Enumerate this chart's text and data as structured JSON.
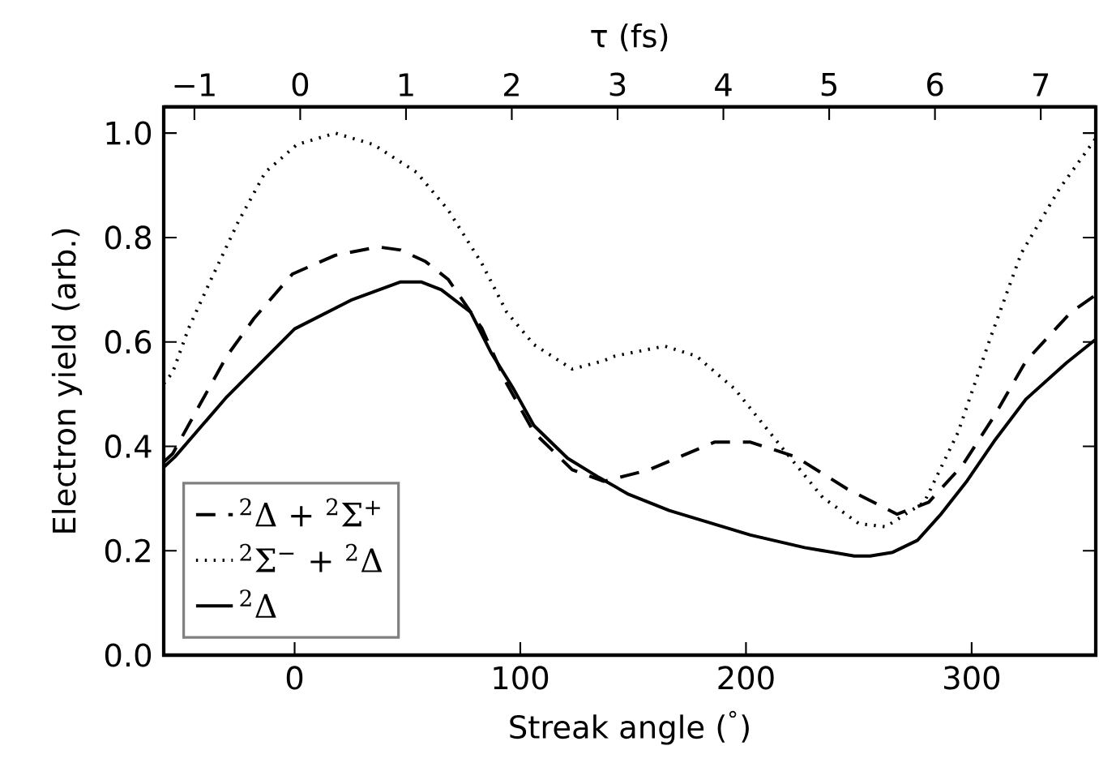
{
  "chart_data": {
    "type": "line",
    "xlabel": "Streak angle ($^{°}$)",
    "ylabel": "Electron yield (arb.)",
    "x2label": "τ (fs)",
    "xlim": [
      -58,
      355
    ],
    "ylim": [
      0,
      1.05
    ],
    "xticks": [
      0,
      100,
      200,
      300
    ],
    "yticks": [
      {
        "value": 0,
        "label": "0.0"
      },
      {
        "value": 0.2,
        "label": "0.2"
      },
      {
        "value": 0.4,
        "label": "0.4"
      },
      {
        "value": 0.6,
        "label": "0.6"
      },
      {
        "value": 0.8,
        "label": "0.8"
      },
      {
        "value": 1.0,
        "label": "1.0"
      }
    ],
    "x2lim": [
      -1.29,
      7.52
    ],
    "x2ticks": [
      {
        "value": -1,
        "label": "−1"
      },
      0,
      1,
      2,
      3,
      4,
      5,
      6,
      7
    ],
    "grid": false,
    "legend": "bottom left",
    "marker": "none",
    "series": [
      {
        "name": "$^{2}$Δ + $^{2}$Σ$^{+}$",
        "color": "#000000",
        "line_style": "dashed",
        "x": [
          -58,
          -54,
          -42,
          -30,
          -18,
          -1,
          18,
          37,
          47,
          58,
          68,
          83,
          94,
          106,
          123,
          137,
          148,
          157,
          186,
          202,
          222,
          245,
          267,
          281,
          296,
          310,
          324,
          344,
          355
        ],
        "values": [
          0.37,
          0.386,
          0.48,
          0.573,
          0.645,
          0.73,
          0.766,
          0.782,
          0.776,
          0.754,
          0.72,
          0.626,
          0.52,
          0.427,
          0.355,
          0.333,
          0.345,
          0.355,
          0.408,
          0.408,
          0.38,
          0.318,
          0.27,
          0.293,
          0.364,
          0.458,
          0.563,
          0.657,
          0.69
        ]
      },
      {
        "name": "$^{2}$Σ$^{−}$ + $^{2}$Δ",
        "color": "#000000",
        "line_style": "dotted",
        "x": [
          -58,
          -54,
          -47,
          -37,
          -25,
          -13,
          1,
          18,
          35,
          54,
          68,
          83,
          94,
          106,
          123,
          137,
          142,
          164,
          178,
          195,
          214,
          234,
          250,
          262,
          279,
          294,
          308,
          322,
          339,
          355
        ],
        "values": [
          0.52,
          0.542,
          0.626,
          0.72,
          0.83,
          0.925,
          0.978,
          1.0,
          0.978,
          0.925,
          0.853,
          0.75,
          0.657,
          0.595,
          0.548,
          0.564,
          0.573,
          0.592,
          0.573,
          0.51,
          0.408,
          0.302,
          0.252,
          0.246,
          0.293,
          0.427,
          0.604,
          0.77,
          0.894,
          0.99
        ]
      },
      {
        "name": "$^{2}$Δ",
        "color": "#000000",
        "line_style": "solid",
        "x": [
          -58,
          -53,
          -30,
          0,
          25,
          47,
          56,
          65,
          78,
          87,
          97,
          106,
          121,
          135,
          148,
          166,
          202,
          226,
          248,
          255,
          265,
          276,
          286,
          298,
          310,
          324,
          342,
          355
        ],
        "values": [
          0.36,
          0.38,
          0.495,
          0.625,
          0.68,
          0.715,
          0.715,
          0.7,
          0.657,
          0.58,
          0.51,
          0.44,
          0.377,
          0.34,
          0.308,
          0.277,
          0.23,
          0.206,
          0.19,
          0.19,
          0.197,
          0.22,
          0.268,
          0.334,
          0.41,
          0.49,
          0.56,
          0.605
        ]
      }
    ]
  }
}
